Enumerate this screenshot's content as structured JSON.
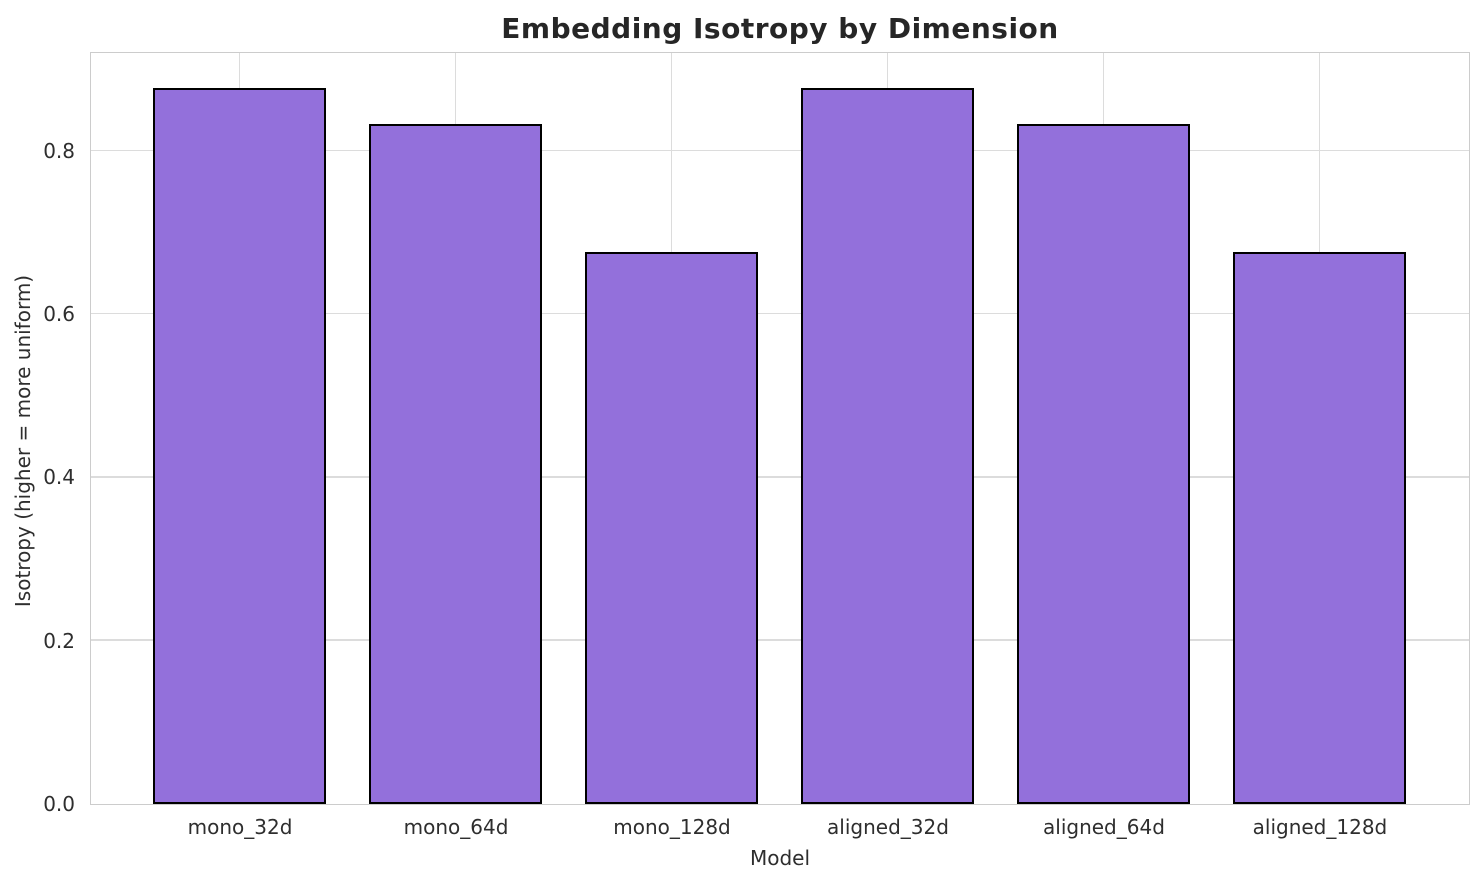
{
  "chart_data": {
    "type": "bar",
    "title": "Embedding Isotropy by Dimension",
    "xlabel": "Model",
    "ylabel": "Isotropy (higher = more uniform)",
    "categories": [
      "mono_32d",
      "mono_64d",
      "mono_128d",
      "aligned_32d",
      "aligned_64d",
      "aligned_128d"
    ],
    "values": [
      0.876,
      0.833,
      0.676,
      0.876,
      0.833,
      0.676
    ],
    "ylim": [
      0,
      0.92
    ],
    "yticks": [
      0,
      0.2,
      0.4,
      0.6,
      0.8
    ],
    "ytick_labels": [
      "0.0",
      "0.2",
      "0.4",
      "0.6",
      "0.8"
    ],
    "grid": true,
    "legend_position": "none",
    "bar_color": "#9370DB",
    "bar_edge_color": "#000000",
    "grid_color": "#dcdcdc",
    "spine_color": "#cccccc",
    "text_color": "#2e2e2e",
    "title_color": "#262626",
    "background_color": "#ffffff"
  }
}
